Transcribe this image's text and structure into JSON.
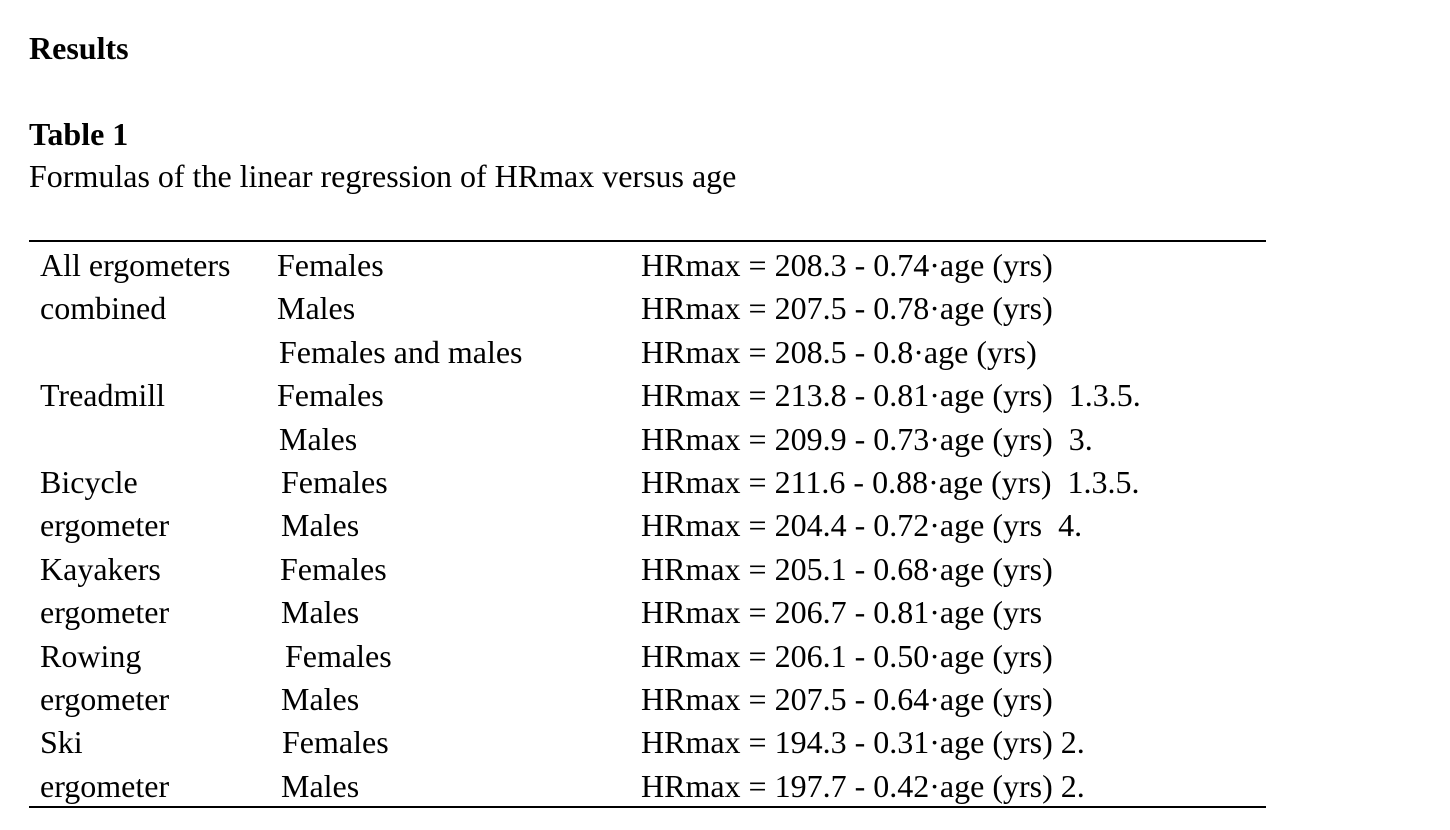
{
  "section_heading": "Results",
  "table": {
    "label": "Table 1",
    "caption": "Formulas of the linear regression of HRmax versus age",
    "rows": [
      {
        "group": "All ergometers",
        "sex": "Females",
        "formula": "HRmax = 208.3 - 0.74·age (yrs)"
      },
      {
        "group": "combined",
        "sex": "Males",
        "formula": "HRmax = 207.5 - 0.78·age (yrs)"
      },
      {
        "group": "",
        "sex": "Females and males",
        "formula": "HRmax = 208.5 - 0.8·age (yrs)"
      },
      {
        "group": "Treadmill",
        "sex": "Females",
        "formula": "HRmax = 213.8 - 0.81·age (yrs)  1.3.5."
      },
      {
        "group": "",
        "sex": "Males",
        "formula": "HRmax = 209.9 - 0.73·age (yrs)  3."
      },
      {
        "group": "Bicycle",
        "sex": "Females",
        "formula": "HRmax = 211.6 - 0.88·age (yrs)  1.3.5."
      },
      {
        "group": "ergometer",
        "sex": "Males",
        "formula": "HRmax = 204.4 - 0.72·age (yrs  4."
      },
      {
        "group": "Kayakers",
        "sex": "Females",
        "formula": "HRmax = 205.1 - 0.68·age (yrs)"
      },
      {
        "group": "ergometer",
        "sex": "Males",
        "formula": "HRmax = 206.7 - 0.81·age (yrs"
      },
      {
        "group": "Rowing",
        "sex": "Females",
        "formula": "HRmax = 206.1 - 0.50·age (yrs)"
      },
      {
        "group": "ergometer",
        "sex": "Males",
        "formula": "HRmax = 207.5 - 0.64·age (yrs)"
      },
      {
        "group": "Ski",
        "sex": "Females",
        "formula": "HRmax = 194.3 - 0.31·age (yrs) 2."
      },
      {
        "group": "ergometer",
        "sex": "Males",
        "formula": "HRmax = 197.7 - 0.42·age (yrs) 2."
      }
    ]
  }
}
